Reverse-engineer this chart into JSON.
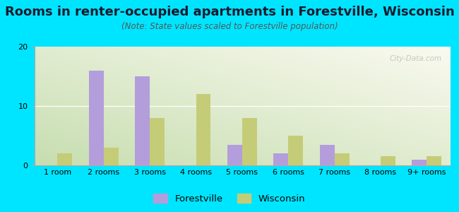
{
  "title": "Rooms in renter-occupied apartments in Forestville, Wisconsin",
  "subtitle": "(Note: State values scaled to Forestville population)",
  "categories": [
    "1 room",
    "2 rooms",
    "3 rooms",
    "4 rooms",
    "5 rooms",
    "6 rooms",
    "7 rooms",
    "8 rooms",
    "9+ rooms"
  ],
  "forestville_values": [
    0,
    16,
    15,
    0,
    3.5,
    2,
    3.5,
    0,
    1
  ],
  "wisconsin_values": [
    2,
    3,
    8,
    12,
    8,
    5,
    2,
    1.5,
    1.5
  ],
  "forestville_color": "#b39ddb",
  "wisconsin_color": "#c5cc78",
  "background_color": "#00e5ff",
  "ylim": [
    0,
    20
  ],
  "yticks": [
    0,
    10,
    20
  ],
  "bar_width": 0.32,
  "title_fontsize": 13,
  "subtitle_fontsize": 8.5,
  "legend_fontsize": 9.5,
  "tick_fontsize": 8,
  "watermark_text": "City-Data.com"
}
